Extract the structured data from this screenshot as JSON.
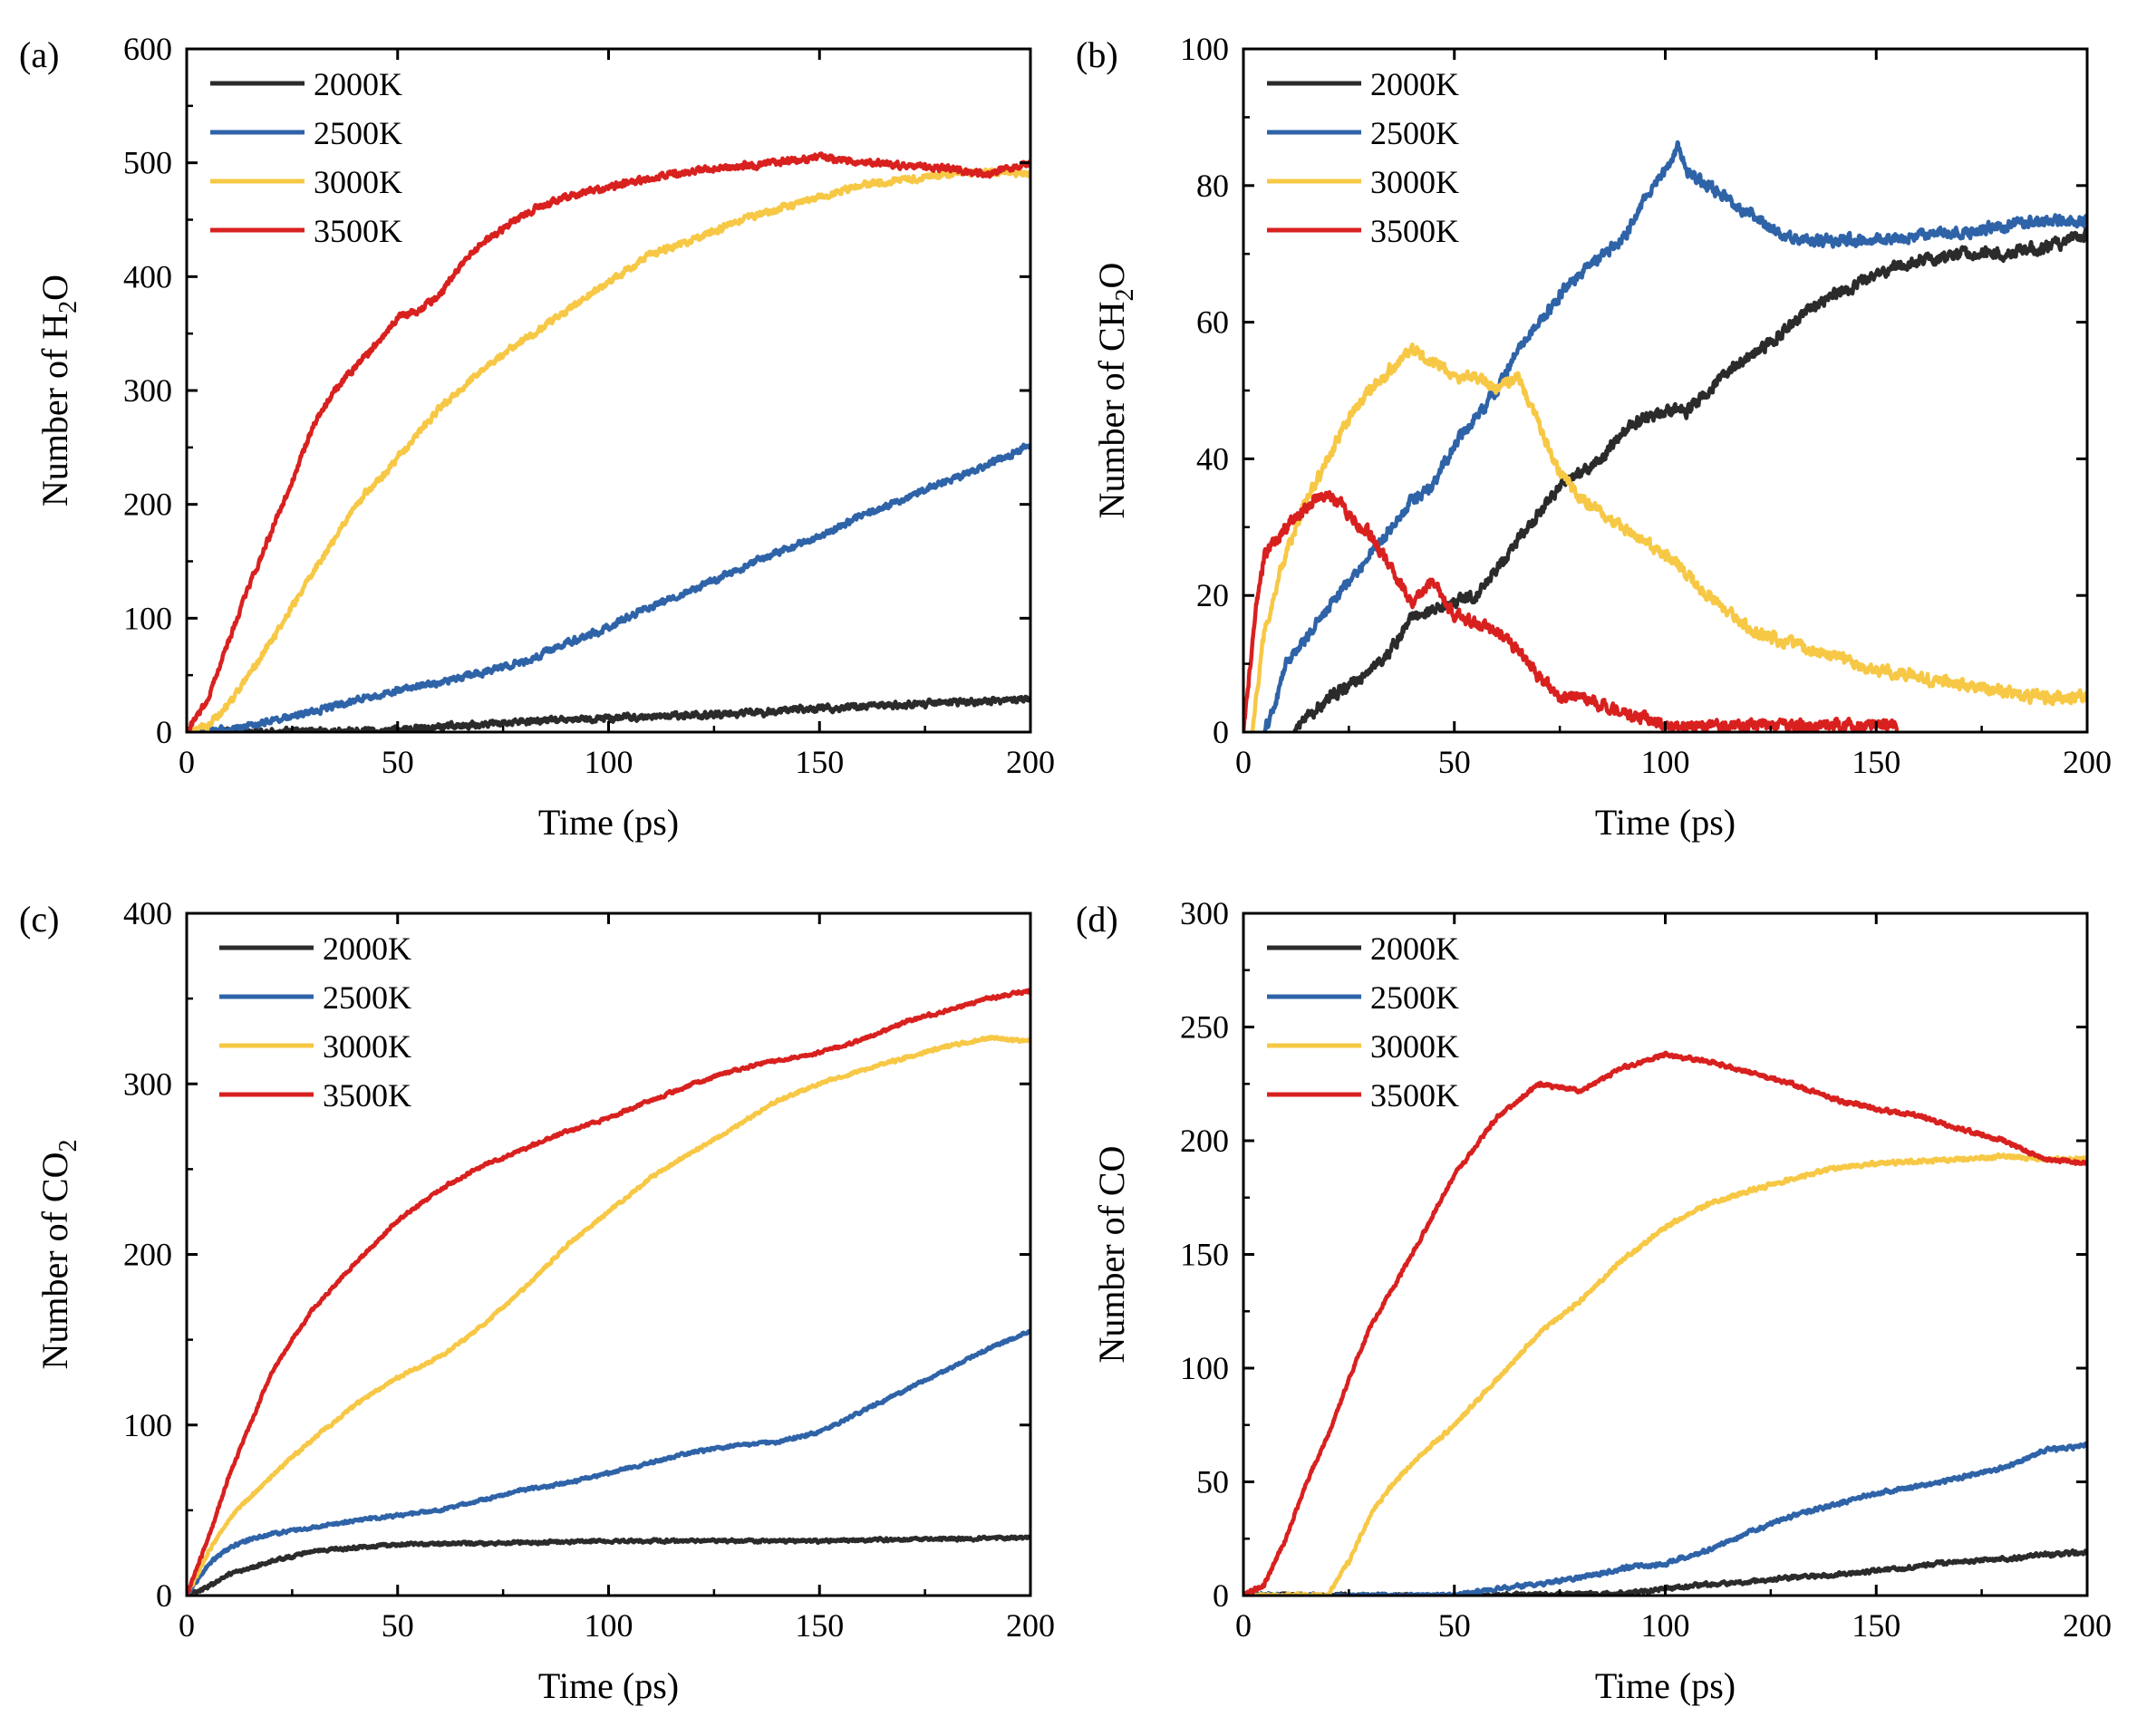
{
  "colors": {
    "2000K": "#2b2b2b",
    "2500K": "#2f63a8",
    "3000K": "#f7c845",
    "3500K": "#d8211f",
    "axis": "#000000"
  },
  "chart_data": [
    {
      "panel": "(a)",
      "type": "line",
      "xlabel": "Time (ps)",
      "ylabel": "Number of H₂O",
      "ylabel_main": "Number of H",
      "ylabel_sub": "2",
      "ylabel_tail": "O",
      "xlim": [
        0,
        200
      ],
      "ylim": [
        0,
        600
      ],
      "xticks": [
        0,
        50,
        100,
        150,
        200
      ],
      "yticks": [
        0,
        100,
        200,
        300,
        400,
        500,
        600
      ],
      "legend_position": "top-left",
      "noise": 5,
      "series": [
        {
          "name": "2000K",
          "x": [
            0,
            20,
            50,
            80,
            100,
            130,
            150,
            175,
            200
          ],
          "y": [
            0,
            0,
            2,
            9,
            12,
            16,
            21,
            25,
            29
          ]
        },
        {
          "name": "2500K",
          "x": [
            0,
            10,
            20,
            30,
            40,
            50,
            60,
            70,
            80,
            90,
            100,
            110,
            120,
            130,
            140,
            150,
            160,
            170,
            180,
            190,
            200
          ],
          "y": [
            0,
            2,
            10,
            18,
            28,
            36,
            44,
            52,
            62,
            78,
            92,
            110,
            125,
            142,
            158,
            172,
            190,
            205,
            220,
            235,
            252
          ]
        },
        {
          "name": "3000K",
          "x": [
            0,
            5,
            10,
            15,
            20,
            30,
            40,
            50,
            60,
            70,
            80,
            90,
            100,
            110,
            120,
            130,
            140,
            150,
            160,
            170,
            180,
            190,
            200
          ],
          "y": [
            0,
            5,
            25,
            50,
            80,
            140,
            200,
            240,
            285,
            318,
            345,
            370,
            395,
            420,
            432,
            448,
            460,
            470,
            480,
            485,
            490,
            492,
            490
          ]
        },
        {
          "name": "3500K",
          "x": [
            0,
            5,
            10,
            15,
            20,
            25,
            30,
            35,
            40,
            45,
            50,
            55,
            60,
            65,
            70,
            80,
            90,
            100,
            110,
            120,
            130,
            140,
            150,
            160,
            170,
            180,
            190,
            200
          ],
          "y": [
            0,
            30,
            80,
            130,
            175,
            220,
            270,
            300,
            320,
            340,
            365,
            370,
            385,
            410,
            430,
            455,
            470,
            478,
            487,
            493,
            497,
            500,
            505,
            500,
            498,
            495,
            490,
            500
          ]
        }
      ]
    },
    {
      "panel": "(b)",
      "type": "line",
      "xlabel": "Time (ps)",
      "ylabel": "Number of CH₂O",
      "ylabel_main": "Number of CH",
      "ylabel_sub": "2",
      "ylabel_tail": "O",
      "xlim": [
        0,
        200
      ],
      "ylim": [
        0,
        100
      ],
      "xticks": [
        0,
        50,
        100,
        150,
        200
      ],
      "yticks": [
        0,
        20,
        40,
        60,
        80,
        100
      ],
      "legend_position": "top-left",
      "noise": 1.4,
      "series": [
        {
          "name": "2000K",
          "x": [
            12,
            15,
            20,
            25,
            30,
            35,
            40,
            45,
            50,
            55,
            60,
            65,
            70,
            75,
            80,
            85,
            90,
            95,
            100,
            105,
            110,
            115,
            120,
            125,
            130,
            140,
            150,
            160,
            170,
            180,
            190,
            200
          ],
          "y": [
            0,
            2,
            5,
            7,
            9,
            12,
            17,
            18,
            19,
            20,
            24,
            28,
            32,
            36,
            38,
            40,
            44,
            46,
            47,
            47,
            50,
            53,
            55,
            57,
            60,
            64,
            67,
            69,
            70,
            70,
            71,
            73
          ]
        },
        {
          "name": "2500K",
          "x": [
            5,
            8,
            10,
            15,
            20,
            25,
            30,
            35,
            40,
            45,
            50,
            55,
            60,
            65,
            70,
            75,
            80,
            85,
            90,
            95,
            100,
            103,
            105,
            110,
            115,
            120,
            125,
            130,
            140,
            150,
            160,
            170,
            180,
            190,
            200
          ],
          "y": [
            0,
            5,
            10,
            14,
            18,
            22,
            26,
            30,
            34,
            36,
            42,
            46,
            50,
            56,
            60,
            64,
            67,
            70,
            72,
            78,
            82,
            86,
            82,
            80,
            78,
            76,
            74,
            72,
            72,
            72,
            73,
            73,
            74,
            75,
            75
          ]
        },
        {
          "name": "3000K",
          "x": [
            2,
            5,
            10,
            15,
            20,
            25,
            30,
            35,
            40,
            45,
            50,
            55,
            60,
            65,
            70,
            75,
            80,
            85,
            90,
            95,
            100,
            110,
            120,
            130,
            140,
            150,
            160,
            170,
            180,
            190,
            200
          ],
          "y": [
            0,
            15,
            26,
            34,
            40,
            46,
            50,
            53,
            56,
            54,
            52,
            52,
            50,
            52,
            45,
            38,
            34,
            32,
            30,
            28,
            26,
            20,
            15,
            13,
            11,
            9,
            8,
            7,
            6,
            5,
            5
          ]
        },
        {
          "name": "3500K",
          "x": [
            0,
            3,
            5,
            10,
            15,
            20,
            25,
            30,
            35,
            40,
            45,
            50,
            55,
            60,
            65,
            70,
            75,
            80,
            85,
            90,
            95,
            100,
            110,
            120,
            155
          ],
          "y": [
            0,
            18,
            26,
            30,
            33,
            35,
            32,
            29,
            24,
            19,
            22,
            17,
            16,
            15,
            12,
            8,
            5,
            5,
            4,
            3,
            2,
            1,
            1,
            1,
            1
          ]
        }
      ]
    },
    {
      "panel": "(c)",
      "type": "line",
      "xlabel": "Time (ps)",
      "ylabel": "Number of CO₂",
      "ylabel_main": "Number of CO",
      "ylabel_sub": "2",
      "ylabel_tail": "",
      "xlim": [
        0,
        200
      ],
      "ylim": [
        0,
        400
      ],
      "xticks": [
        0,
        50,
        100,
        150,
        200
      ],
      "yticks": [
        0,
        100,
        200,
        300,
        400
      ],
      "legend_position": "top-left",
      "noise": 1.6,
      "series": [
        {
          "name": "2000K",
          "x": [
            0,
            5,
            10,
            20,
            30,
            40,
            50,
            75,
            100,
            150,
            200
          ],
          "y": [
            0,
            5,
            12,
            20,
            26,
            28,
            30,
            31,
            32,
            32,
            34
          ]
        },
        {
          "name": "2500K",
          "x": [
            0,
            5,
            10,
            15,
            20,
            30,
            40,
            50,
            60,
            70,
            80,
            90,
            100,
            110,
            120,
            130,
            140,
            150,
            160,
            170,
            180,
            190,
            200
          ],
          "y": [
            0,
            18,
            28,
            33,
            36,
            40,
            44,
            47,
            50,
            56,
            62,
            66,
            72,
            78,
            84,
            88,
            90,
            96,
            108,
            120,
            132,
            145,
            155
          ]
        },
        {
          "name": "3000K",
          "x": [
            0,
            5,
            10,
            20,
            30,
            40,
            50,
            60,
            70,
            80,
            90,
            100,
            110,
            120,
            130,
            140,
            150,
            160,
            170,
            180,
            190,
            200
          ],
          "y": [
            0,
            25,
            45,
            70,
            92,
            112,
            128,
            140,
            158,
            180,
            205,
            225,
            245,
            260,
            275,
            290,
            300,
            308,
            315,
            322,
            327,
            325
          ]
        },
        {
          "name": "3500K",
          "x": [
            0,
            3,
            6,
            10,
            15,
            20,
            25,
            30,
            40,
            50,
            60,
            70,
            80,
            90,
            100,
            110,
            120,
            130,
            140,
            150,
            160,
            170,
            180,
            190,
            200
          ],
          "y": [
            0,
            20,
            40,
            70,
            100,
            130,
            150,
            168,
            195,
            220,
            238,
            252,
            262,
            272,
            280,
            290,
            300,
            308,
            314,
            318,
            326,
            336,
            343,
            350,
            355
          ]
        }
      ]
    },
    {
      "panel": "(d)",
      "type": "line",
      "xlabel": "Time (ps)",
      "ylabel": "Number of CO",
      "ylabel_main": "Number of CO",
      "ylabel_sub": "",
      "ylabel_tail": "",
      "xlim": [
        0,
        200
      ],
      "ylim": [
        0,
        300
      ],
      "xticks": [
        0,
        50,
        100,
        150,
        200
      ],
      "yticks": [
        0,
        50,
        100,
        150,
        200,
        250,
        300
      ],
      "legend_position": "top-left",
      "noise": 1.5,
      "series": [
        {
          "name": "2000K",
          "x": [
            0,
            50,
            90,
            100,
            110,
            120,
            130,
            140,
            150,
            160,
            170,
            180,
            190,
            200
          ],
          "y": [
            0,
            0,
            1,
            3,
            5,
            6,
            8,
            9,
            11,
            13,
            15,
            16,
            18,
            19
          ]
        },
        {
          "name": "2500K",
          "x": [
            0,
            50,
            60,
            70,
            80,
            90,
            100,
            110,
            120,
            130,
            140,
            150,
            160,
            170,
            180,
            190,
            200
          ],
          "y": [
            0,
            0,
            3,
            5,
            8,
            12,
            14,
            20,
            28,
            35,
            40,
            45,
            48,
            52,
            56,
            64,
            66
          ]
        },
        {
          "name": "3000K",
          "x": [
            0,
            20,
            25,
            30,
            35,
            40,
            50,
            60,
            70,
            80,
            90,
            100,
            110,
            120,
            130,
            140,
            150,
            160,
            170,
            180,
            190,
            200
          ],
          "y": [
            0,
            0,
            15,
            35,
            48,
            58,
            75,
            95,
            115,
            130,
            148,
            162,
            172,
            178,
            183,
            188,
            190,
            191,
            192,
            193,
            192,
            192
          ]
        },
        {
          "name": "3500K",
          "x": [
            0,
            5,
            10,
            15,
            20,
            25,
            30,
            40,
            50,
            60,
            70,
            80,
            90,
            100,
            110,
            120,
            130,
            140,
            150,
            160,
            170,
            180,
            190,
            200
          ],
          "y": [
            0,
            5,
            25,
            50,
            70,
            95,
            118,
            150,
            185,
            210,
            225,
            222,
            232,
            238,
            235,
            230,
            225,
            218,
            214,
            211,
            205,
            200,
            192,
            190
          ]
        }
      ]
    }
  ]
}
